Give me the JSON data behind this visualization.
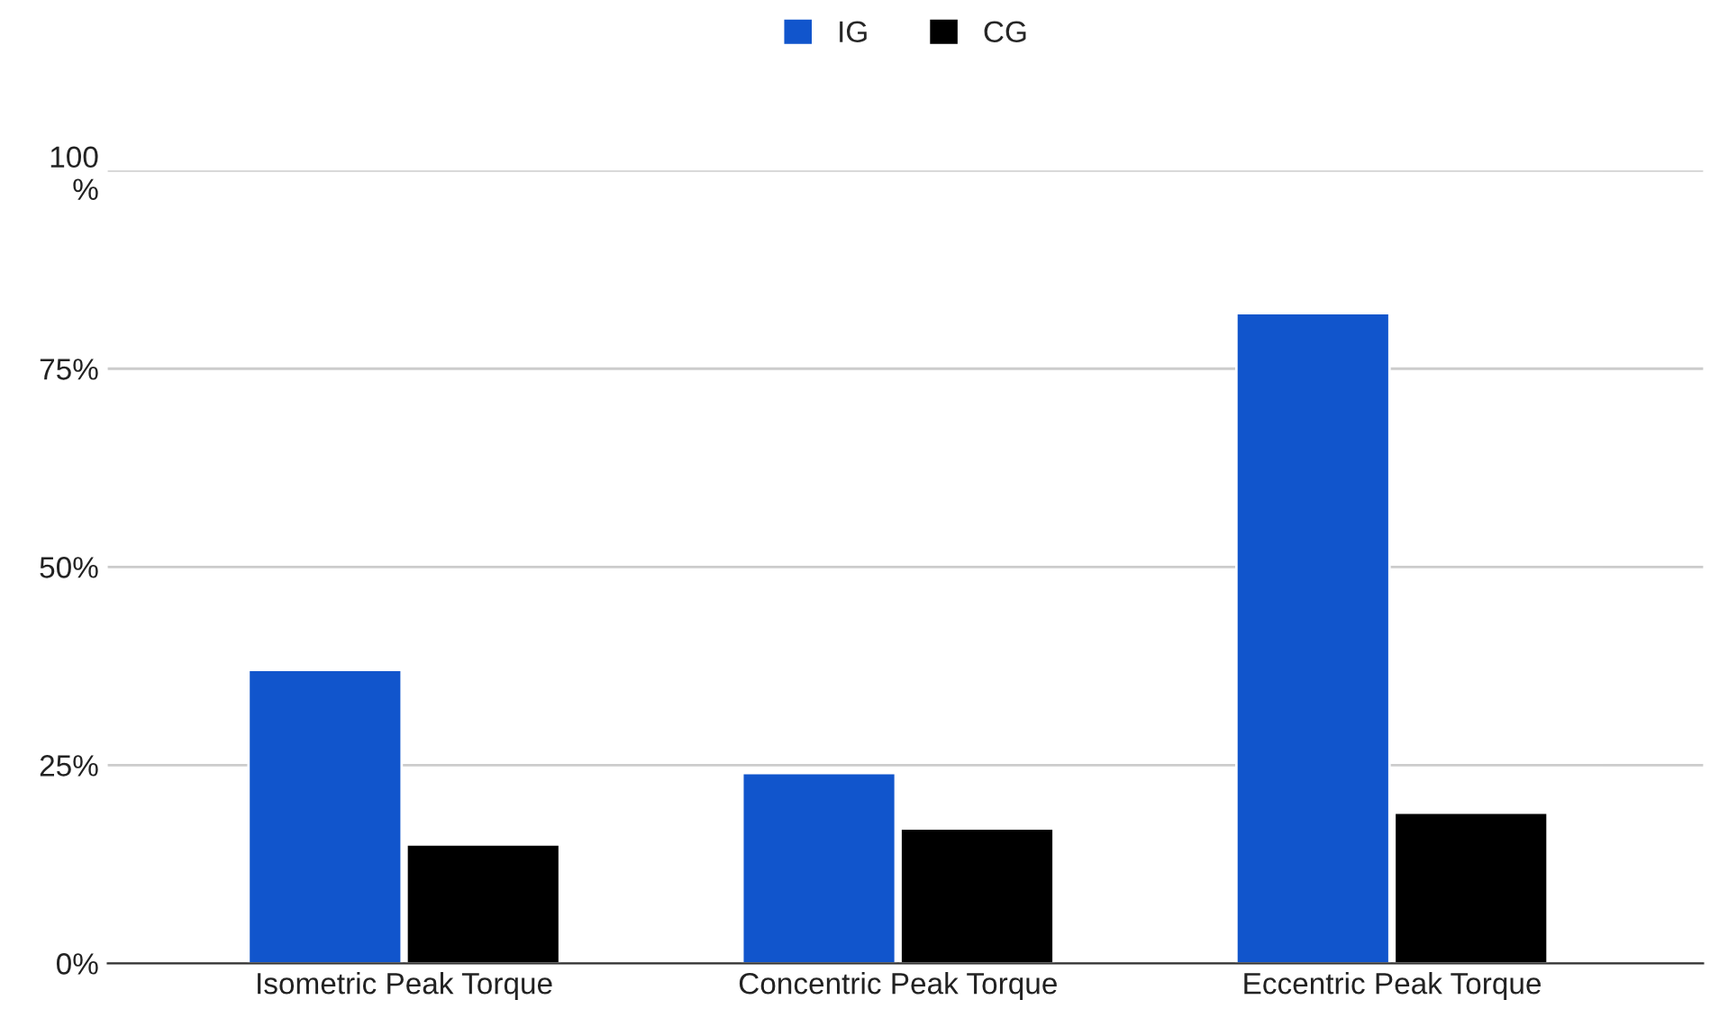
{
  "chart_data": {
    "type": "bar",
    "categories": [
      "Isometric Peak Torque",
      "Concentric Peak Torque",
      "Eccentric Peak Torque"
    ],
    "series": [
      {
        "name": "IG",
        "color": "#1155cc",
        "values": [
          37,
          24,
          82
        ]
      },
      {
        "name": "CG",
        "color": "#000000",
        "values": [
          15,
          17,
          19
        ]
      }
    ],
    "ylim": [
      0,
      100
    ],
    "yticks": [
      {
        "value": 0,
        "label": "0%"
      },
      {
        "value": 25,
        "label": "25%"
      },
      {
        "value": 50,
        "label": "50%"
      },
      {
        "value": 75,
        "label": "75%"
      },
      {
        "value": 100,
        "label": "100\n%"
      }
    ],
    "grid": "y",
    "legend": "top"
  }
}
